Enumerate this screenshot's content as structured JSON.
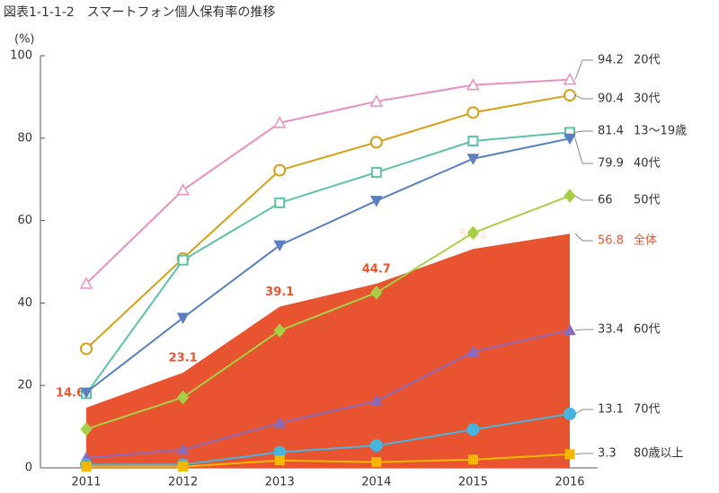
{
  "chart_data": {
    "type": "line",
    "title": "図表1-1-1-2　スマートフォン個人保有率の推移",
    "y_label": "(%)",
    "categories": [
      "2011",
      "2012",
      "2013",
      "2014",
      "2015",
      "2016"
    ],
    "ylim": [
      0,
      100
    ],
    "yticks": [
      0,
      20,
      40,
      60,
      80,
      100
    ],
    "grid": false,
    "series": [
      {
        "name": "全体",
        "color": "#e8542f",
        "area": true,
        "values": [
          14.6,
          23.1,
          39.1,
          44.7,
          53.1,
          56.8
        ]
      },
      {
        "name": "20代",
        "color": "#e98fbf",
        "marker": "triangle",
        "values": [
          44.7,
          67.4,
          83.7,
          88.9,
          92.9,
          94.2
        ]
      },
      {
        "name": "30代",
        "color": "#d4a017",
        "marker": "circle-open",
        "values": [
          28.9,
          50.8,
          72.2,
          79.0,
          86.2,
          90.4
        ]
      },
      {
        "name": "13～19歳",
        "color": "#5cc2a8",
        "marker": "square-open",
        "values": [
          18.0,
          50.4,
          64.3,
          71.7,
          79.3,
          81.4
        ]
      },
      {
        "name": "40代",
        "color": "#5b7fc0",
        "marker": "triangle-down",
        "values": [
          18.3,
          36.4,
          54.0,
          64.8,
          75.0,
          79.9
        ]
      },
      {
        "name": "50代",
        "color": "#a6cf45",
        "marker": "diamond",
        "values": [
          9.4,
          17.1,
          33.3,
          42.5,
          57.0,
          66.0
        ]
      },
      {
        "name": "60代",
        "color": "#8a6bbf",
        "marker": "triangle",
        "values": [
          2.4,
          4.4,
          10.9,
          16.2,
          28.2,
          33.4
        ]
      },
      {
        "name": "70代",
        "color": "#45b5e0",
        "marker": "circle",
        "values": [
          0.8,
          0.8,
          3.8,
          5.4,
          9.3,
          13.1
        ]
      },
      {
        "name": "80歳以上",
        "color": "#f5b800",
        "marker": "square",
        "values": [
          0.3,
          0.3,
          1.8,
          1.4,
          2.0,
          3.3
        ]
      }
    ]
  }
}
